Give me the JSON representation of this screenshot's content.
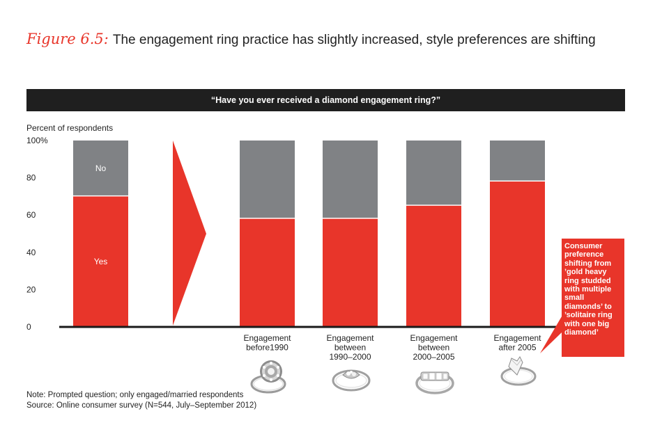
{
  "figure": {
    "label": "Figure 6.5:",
    "title": "The engagement ring practice has slightly increased, style preferences are shifting"
  },
  "banner": {
    "question": "“Have you ever received a diamond engagement ring?”"
  },
  "colors": {
    "yes": "#e8352a",
    "no": "#808285",
    "accent": "#e8352a",
    "banner": "#1f1f1f"
  },
  "chart_data": {
    "type": "bar",
    "stacked": true,
    "ylabel": "Percent of respondents",
    "ylim": [
      0,
      100
    ],
    "yticks": [
      "0",
      "20",
      "40",
      "60",
      "80",
      "100%"
    ],
    "categories": [
      "",
      "Engagement before1990",
      "Engagement between 1990–2000",
      "Engagement between 2000–2005",
      "Engagement after 2005"
    ],
    "category_lines": [
      [],
      [
        "Engagement",
        "before1990"
      ],
      [
        "Engagement",
        "between",
        "1990–2000"
      ],
      [
        "Engagement",
        "between",
        "2000–2005"
      ],
      [
        "Engagement",
        "after 2005"
      ]
    ],
    "series": [
      {
        "name": "Yes",
        "values": [
          70,
          58,
          58,
          65,
          78
        ]
      },
      {
        "name": "No",
        "values": [
          30,
          42,
          42,
          35,
          22
        ]
      }
    ]
  },
  "callout": {
    "text": "Consumer preference shifting from ’gold heavy ring studded with multiple small diamonds’ to ’solitaire ring with one big diamond’"
  },
  "rings": [
    "ring-cluster-icon",
    "ring-twist-icon",
    "ring-channel-icon",
    "ring-solitaire-icon"
  ],
  "notes": {
    "note": "Note: Prompted question; only engaged/married respondents",
    "source": "Source: Online consumer survey (N=544, July–September 2012)"
  }
}
